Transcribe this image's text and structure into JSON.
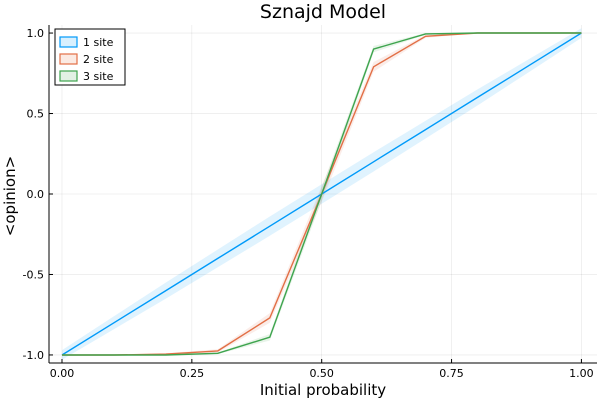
{
  "chart_data": {
    "type": "line",
    "title": "Sznajd Model",
    "xlabel": "Initial probability",
    "ylabel": "<opinion>",
    "xlim": [
      -0.025,
      1.03
    ],
    "ylim": [
      -1.05,
      1.05
    ],
    "xticks": [
      0.0,
      0.25,
      0.5,
      0.75,
      1.0
    ],
    "xtick_labels": [
      "0.00",
      "0.25",
      "0.50",
      "0.75",
      "1.00"
    ],
    "yticks": [
      -1.0,
      -0.5,
      0.0,
      0.5,
      1.0
    ],
    "ytick_labels": [
      "-1.0",
      "-0.5",
      "0.0",
      "0.5",
      "1.0"
    ],
    "grid": true,
    "legend_position": "top-left",
    "x": [
      0.0,
      0.1,
      0.2,
      0.3,
      0.4,
      0.5,
      0.6,
      0.7,
      0.8,
      0.9,
      1.0
    ],
    "series": [
      {
        "name": "1 site",
        "color": "#009af9",
        "values": [
          -1.0,
          -0.8,
          -0.6,
          -0.4,
          -0.2,
          0.0,
          0.2,
          0.4,
          0.6,
          0.8,
          1.0
        ],
        "band": [
          0.03,
          0.04,
          0.05,
          0.055,
          0.06,
          0.06,
          0.06,
          0.055,
          0.05,
          0.04,
          0.03
        ]
      },
      {
        "name": "2 site",
        "color": "#e26f46",
        "values": [
          -1.0,
          -1.0,
          -0.995,
          -0.975,
          -0.77,
          0.0,
          0.79,
          0.98,
          1.0,
          1.0,
          1.0
        ],
        "band": [
          0.0,
          0.0,
          0.005,
          0.01,
          0.03,
          0.05,
          0.03,
          0.01,
          0.0,
          0.0,
          0.0
        ]
      },
      {
        "name": "3 site",
        "color": "#3ea44e",
        "values": [
          -1.0,
          -1.0,
          -1.0,
          -0.99,
          -0.89,
          0.0,
          0.9,
          0.995,
          1.0,
          1.0,
          1.0
        ],
        "band": [
          0.0,
          0.0,
          0.0,
          0.005,
          0.02,
          0.04,
          0.02,
          0.005,
          0.0,
          0.0,
          0.0
        ]
      }
    ]
  }
}
